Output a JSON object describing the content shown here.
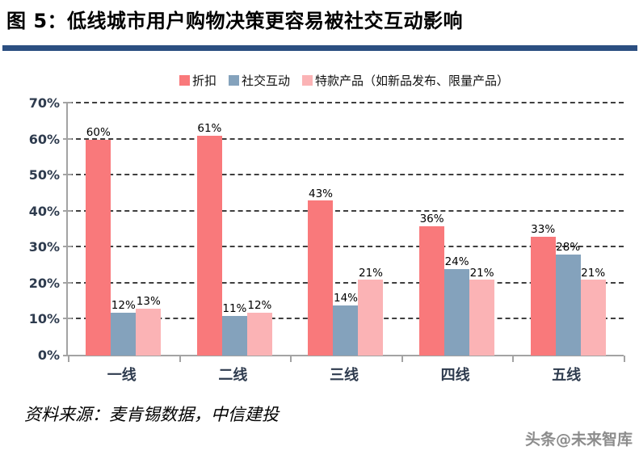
{
  "header": {
    "title": "图 5：低线城市用户购物决策更容易被社交互动影响"
  },
  "colors": {
    "title_rule": "#2B4F81",
    "axis": "#A3A3A3",
    "gridline": "#3F3F3F",
    "axis_label": "#2E3B4E",
    "series_discount": "#F9797B",
    "series_social": "#84A2BC",
    "series_special": "#FBB3B5",
    "watermark": "#8C8C8C"
  },
  "chart_data": {
    "type": "bar",
    "title": "图 5：低线城市用户购物决策更容易被社交互动影响",
    "categories": [
      "一线",
      "二线",
      "三线",
      "四线",
      "五线"
    ],
    "series": [
      {
        "name": "折扣",
        "color": "#F9797B",
        "values": [
          60,
          61,
          43,
          36,
          33
        ]
      },
      {
        "name": "社交互动",
        "color": "#84A2BC",
        "values": [
          12,
          11,
          14,
          24,
          28
        ]
      },
      {
        "name": "特款产品（如新品发布、限量产品）",
        "color": "#FBB3B5",
        "values": [
          13,
          12,
          21,
          21,
          21
        ]
      }
    ],
    "data_label_suffix": "%",
    "ylabel": "",
    "xlabel": "",
    "ylim": [
      0,
      70
    ],
    "ytick_step": 10,
    "yticks": [
      "0%",
      "10%",
      "20%",
      "30%",
      "40%",
      "50%",
      "60%",
      "70%"
    ],
    "grid": "horizontal-dashed",
    "legend_position": "top"
  },
  "footer": {
    "source": "资料来源：麦肯锡数据，中信建投",
    "watermark": "头条@未来智库"
  }
}
